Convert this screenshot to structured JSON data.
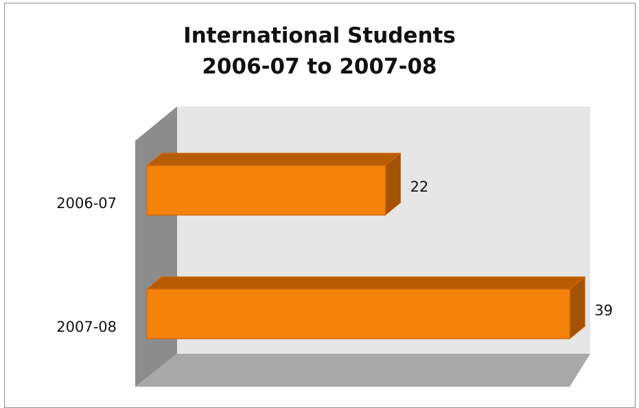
{
  "chart_data": {
    "type": "bar",
    "orientation": "horizontal",
    "style": "3d",
    "title_lines": [
      "International Students",
      "2006-07 to 2007-08"
    ],
    "categories": [
      "2006-07",
      "2007-08"
    ],
    "values": [
      22,
      39
    ],
    "xlim": [
      0,
      40
    ],
    "grid": false,
    "legend": "none",
    "data_labels": [
      "22",
      "39"
    ],
    "colors": {
      "bar_front": "#f5820a",
      "bar_top": "#b85c04",
      "bar_side": "#a45204",
      "bar_edge": "#d46a06",
      "back_wall": "#e6e6e6",
      "side_wall": "#8c8c8c",
      "floor": "#a8a8a8"
    }
  }
}
